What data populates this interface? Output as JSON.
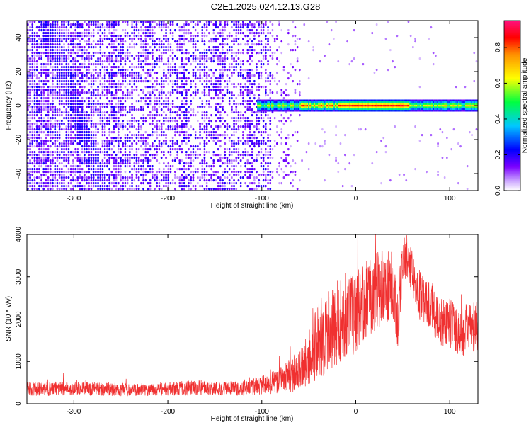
{
  "title": "C2E1.2025.024.12.13.G28",
  "chart_data": [
    {
      "type": "heatmap",
      "xlabel": "Height of straight line (km)",
      "ylabel": "Frequency (Hz)",
      "xlim": [
        -350,
        130
      ],
      "ylim": [
        -50,
        50
      ],
      "xticks": [
        -300,
        -200,
        -100,
        0,
        100
      ],
      "xtick_labels": [
        "-300",
        "-200",
        "-100",
        "0",
        "100"
      ],
      "yticks": [
        -40,
        -20,
        0,
        20,
        40
      ],
      "ytick_labels": [
        "-40",
        "-20",
        "0",
        "20",
        "40"
      ],
      "colorbar": {
        "label": "Normalized spectral amplitude",
        "range": [
          0,
          0.95
        ],
        "ticks": [
          0,
          0.2,
          0.4,
          0.6,
          0.8
        ],
        "tick_labels": [
          "0.0",
          "0.2",
          "0.4",
          "0.6",
          "0.8"
        ],
        "colors": [
          "#ffffff",
          "#b070ff",
          "#6a00ff",
          "#0000ff",
          "#00c8ff",
          "#00ff30",
          "#ffff00",
          "#ff9000",
          "#ff0000",
          "#ff1080"
        ]
      },
      "features": {
        "noise_region_x": [
          -350,
          -90
        ],
        "signal_band_x": [
          -105,
          130
        ],
        "signal_band_freq_hz": 0,
        "signal_band_halfwidth_hz": 3,
        "peak_amplitude_x": [
          -20,
          55
        ]
      }
    },
    {
      "type": "line",
      "xlabel": "Height of straight line (km)",
      "ylabel": "SNR (10 * v/v)",
      "xlim": [
        -350,
        130
      ],
      "ylim": [
        0,
        4000
      ],
      "xticks": [
        -300,
        -200,
        -100,
        0,
        100
      ],
      "xtick_labels": [
        "-300",
        "-200",
        "-100",
        "0",
        "100"
      ],
      "yticks": [
        0,
        1000,
        2000,
        3000,
        4000
      ],
      "ytick_labels": [
        "0",
        "1000",
        "2000",
        "3000",
        "4000"
      ],
      "color": "#f03030",
      "series": [
        {
          "x": [
            -350,
            -320,
            -290,
            -260,
            -230,
            -200,
            -170,
            -140,
            -120,
            -100,
            -80,
            -60,
            -50,
            -40,
            -30,
            -20,
            -10,
            0,
            10,
            20,
            30,
            40,
            45,
            50,
            55,
            60,
            70,
            80,
            90,
            100,
            110,
            120,
            130
          ],
          "y": [
            350,
            360,
            370,
            340,
            330,
            350,
            380,
            360,
            370,
            430,
            560,
            780,
            1050,
            1500,
            1700,
            1900,
            2050,
            2150,
            2500,
            2650,
            2800,
            2750,
            2000,
            3400,
            3500,
            3100,
            2450,
            2300,
            1900,
            1950,
            1600,
            1850,
            1800
          ],
          "spread": [
            160,
            170,
            170,
            160,
            150,
            160,
            180,
            170,
            180,
            230,
            320,
            480,
            650,
            900,
            1000,
            1000,
            1000,
            950,
            950,
            950,
            900,
            850,
            700,
            600,
            500,
            550,
            600,
            550,
            600,
            600,
            600,
            600,
            600
          ]
        }
      ]
    }
  ]
}
